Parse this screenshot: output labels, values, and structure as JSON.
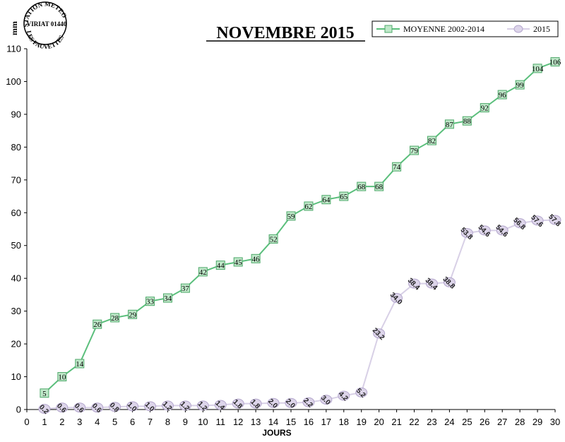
{
  "logo": {
    "top_text": "STATION METEO",
    "middle_text": "VIRIAT 01440",
    "bottom_text": "LES FAUVETTES"
  },
  "chart_data": {
    "type": "line",
    "title": "NOVEMBRE 2015",
    "xlabel": "JOURS",
    "ylabel": "mm",
    "xlim": [
      0,
      30
    ],
    "ylim": [
      0,
      110
    ],
    "x_ticks": [
      0,
      1,
      2,
      3,
      4,
      5,
      6,
      7,
      8,
      9,
      10,
      11,
      12,
      13,
      14,
      15,
      16,
      17,
      18,
      19,
      20,
      21,
      22,
      23,
      24,
      25,
      26,
      27,
      28,
      29,
      30
    ],
    "y_ticks": [
      0,
      10,
      20,
      30,
      40,
      50,
      60,
      70,
      80,
      90,
      100,
      110
    ],
    "grid": false,
    "legend_position": "top-right",
    "x": [
      1,
      2,
      3,
      4,
      5,
      6,
      7,
      8,
      9,
      10,
      11,
      12,
      13,
      14,
      15,
      16,
      17,
      18,
      19,
      20,
      21,
      22,
      23,
      24,
      25,
      26,
      27,
      28,
      29,
      30
    ],
    "series": [
      {
        "name": "MOYENNE 2002-2014",
        "color": "#66c487",
        "marker": "square",
        "values": [
          5,
          10,
          14,
          26,
          28,
          29,
          33,
          34,
          37,
          42,
          44,
          45,
          46,
          52,
          59,
          62,
          64,
          65,
          68,
          68,
          74,
          79,
          82,
          87,
          88,
          92,
          96,
          99,
          104,
          106
        ],
        "labels": [
          "5",
          "10",
          "14",
          "26",
          "28",
          "29",
          "33",
          "34",
          "37",
          "42",
          "44",
          "45",
          "46",
          "52",
          "59",
          "62",
          "64",
          "65",
          "68",
          "68",
          "74",
          "79",
          "82",
          "87",
          "88",
          "92",
          "96",
          "99",
          "104",
          "106"
        ]
      },
      {
        "name": "2015",
        "color": "#c9bfdd",
        "marker": "circle",
        "values": [
          0.2,
          0.6,
          0.6,
          0.6,
          0.8,
          1.0,
          1.0,
          1.2,
          1.2,
          1.2,
          1.4,
          1.8,
          1.8,
          2.0,
          2.0,
          2.2,
          3.0,
          4.2,
          5.2,
          23.2,
          34.0,
          38.4,
          38.4,
          38.8,
          53.8,
          54.6,
          54.6,
          56.8,
          57.6,
          57.8
        ],
        "labels": [
          "0.2",
          "0.6",
          "0.6",
          "0.6",
          "0.8",
          "1.0",
          "1.0",
          "1.2",
          "1.2",
          "1.2",
          "1.4",
          "1.8",
          "1.8",
          "2.0",
          "2.0",
          "2.2",
          "3.0",
          "4.2",
          "5.2",
          "23.2",
          "34.0",
          "38.4",
          "38.4",
          "38.8",
          "53.8",
          "54.6",
          "54.6",
          "56.8",
          "57.6",
          "57.8"
        ]
      }
    ]
  }
}
